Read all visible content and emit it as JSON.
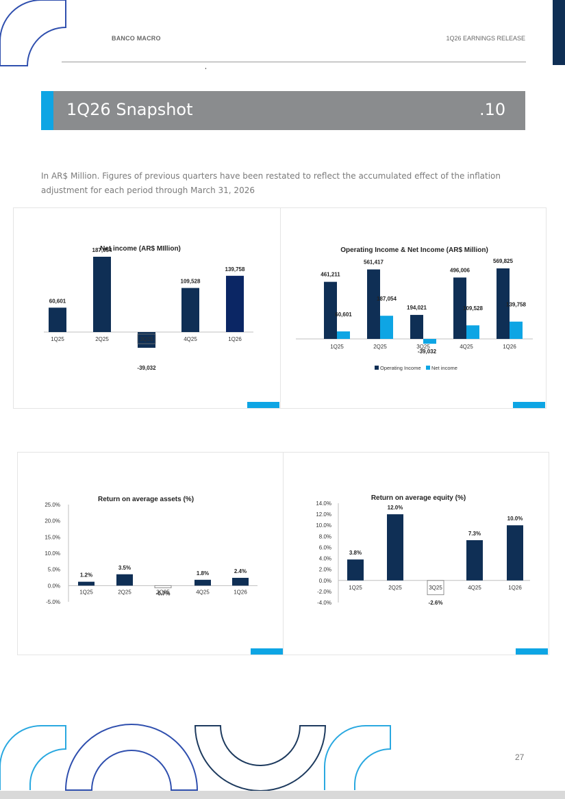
{
  "header": {
    "left": "BANCO MACRO",
    "right": "1Q26 EARNINGS RELEASE"
  },
  "section": {
    "title": "1Q26 Snapshot",
    "number": ".10"
  },
  "intro": "In AR$ Million. Figures of previous quarters have been restated to reflect the accumulated effect of the inflation adjustment for each period through March 31, 2026",
  "page_number": "27",
  "colors": {
    "navy": "#0f2f55",
    "light_blue": "#0ea5e4",
    "band_gray": "#8a8c8e"
  },
  "chart_data": [
    {
      "type": "bar",
      "title": "Net income (AR$ MIllion)",
      "categories": [
        "1Q25",
        "2Q25",
        "3Q25",
        "4Q25",
        "1Q26"
      ],
      "values": [
        60601,
        187054,
        -39032,
        109528,
        139758
      ],
      "labels": [
        "60,601",
        "187,054",
        "-39,032",
        "109,528",
        "139,758"
      ]
    },
    {
      "type": "bar",
      "title": "Operating Income & Net Income (AR$ Million)",
      "categories": [
        "1Q25",
        "2Q25",
        "3Q25",
        "4Q25",
        "1Q26"
      ],
      "series": [
        {
          "name": "Operating Income",
          "values": [
            461211,
            561417,
            194021,
            496006,
            569825
          ],
          "labels": [
            "461,211",
            "561,417",
            "194,021",
            "496,006",
            "569,825"
          ]
        },
        {
          "name": "Net income",
          "values": [
            60601,
            187054,
            -39032,
            109528,
            139758
          ],
          "labels": [
            "60,601",
            "187,054",
            "-39,032",
            "109,528",
            "139,758"
          ]
        }
      ],
      "legend": "bottom"
    },
    {
      "type": "bar",
      "title": "Return on average assets (%)",
      "categories": [
        "1Q25",
        "2Q25",
        "3Q25",
        "4Q25",
        "1Q26"
      ],
      "values": [
        1.2,
        3.5,
        -0.7,
        1.8,
        2.4
      ],
      "labels": [
        "1.2%",
        "3.5%",
        "-0.7%",
        "1.8%",
        "2.4%"
      ],
      "ylim": [
        -5,
        25
      ],
      "yticks": [
        "25.0%",
        "20.0%",
        "15.0%",
        "10.0%",
        "5.0%",
        "0.0%",
        "-5.0%"
      ]
    },
    {
      "type": "bar",
      "title": "Return on average equity (%)",
      "categories": [
        "1Q25",
        "2Q25",
        "3Q25",
        "4Q25",
        "1Q26"
      ],
      "values": [
        3.8,
        12.0,
        -2.6,
        7.3,
        10.0
      ],
      "labels": [
        "3.8%",
        "12.0%",
        "-2.6%",
        "7.3%",
        "10.0%"
      ],
      "ylim": [
        -4,
        14
      ],
      "yticks": [
        "14.0%",
        "12.0%",
        "10.0%",
        "8.0%",
        "6.0%",
        "4.0%",
        "2.0%",
        "0.0%",
        "-2.0%",
        "-4.0%"
      ]
    }
  ]
}
